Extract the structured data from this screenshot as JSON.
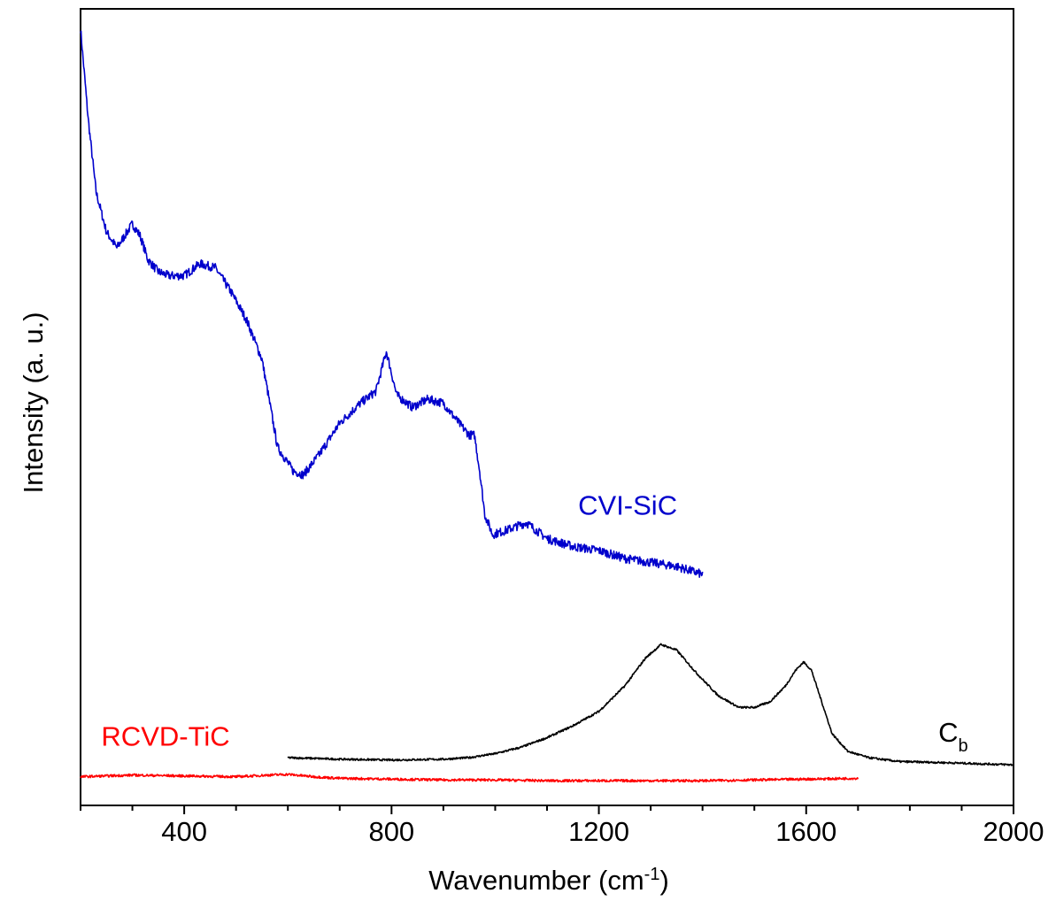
{
  "chart_data": {
    "type": "line",
    "xlabel": "Wavenumber (cm",
    "xlabel_sup": "-1",
    "xlabel_suffix": ")",
    "ylabel": "Intensity (a. u.)",
    "xlim": [
      200,
      2000
    ],
    "ylim": [
      0,
      100
    ],
    "xticks": [
      400,
      800,
      1200,
      1600,
      2000
    ],
    "xtick_labels": [
      "400",
      "800",
      "1200",
      "1600",
      "2000"
    ],
    "minor_xtick_step": 100,
    "grid": false,
    "legend": "none",
    "series": [
      {
        "name": "CVI-SiC",
        "label_main": "CVI-SiC",
        "label_sub": "",
        "color": "#0000cc",
        "label_at": {
          "x": 1160,
          "y": 36.5
        },
        "x": [
          200,
          215,
          230,
          250,
          270,
          285,
          300,
          315,
          330,
          350,
          370,
          400,
          430,
          460,
          490,
          520,
          550,
          580,
          610,
          630,
          660,
          700,
          740,
          770,
          790,
          810,
          840,
          870,
          900,
          930,
          950,
          960,
          970,
          980,
          995,
          1020,
          1060,
          1100,
          1150,
          1200,
          1250,
          1300,
          1350,
          1400
        ],
        "y": [
          97.5,
          86,
          77,
          72,
          70,
          71.5,
          73,
          71.5,
          68.5,
          67,
          66.5,
          66.5,
          68,
          67.5,
          64.5,
          61,
          56,
          45,
          42,
          41.5,
          44,
          48,
          50.5,
          52,
          57,
          51.5,
          50,
          51,
          50.5,
          48,
          46.5,
          46.5,
          42,
          36.5,
          34,
          34.5,
          35.5,
          33.5,
          32.5,
          32,
          31,
          30.5,
          30,
          29
        ]
      },
      {
        "name": "C_b",
        "label_main": "C",
        "label_sub": "b",
        "color": "#000000",
        "label_at": {
          "x": 1855,
          "y": 8
        },
        "x": [
          600,
          700,
          800,
          900,
          950,
          1000,
          1050,
          1100,
          1150,
          1200,
          1250,
          1290,
          1320,
          1350,
          1390,
          1430,
          1470,
          1500,
          1530,
          1560,
          1580,
          1595,
          1610,
          1630,
          1650,
          1680,
          1720,
          1780,
          1850,
          1950,
          2000
        ],
        "y": [
          6.0,
          5.8,
          5.7,
          5.8,
          6.0,
          6.5,
          7.3,
          8.5,
          10.0,
          11.8,
          15.0,
          18.5,
          20.2,
          19.5,
          16.5,
          13.8,
          12.3,
          12.3,
          13.0,
          15.0,
          17.0,
          18.0,
          17.0,
          13.0,
          9.0,
          6.8,
          6.0,
          5.5,
          5.4,
          5.2,
          5.1
        ]
      },
      {
        "name": "RCVD-TiC",
        "label_main": "RCVD-TiC",
        "label_sub": "",
        "color": "#ff0000",
        "label_at": {
          "x": 240,
          "y": 7.5
        },
        "x": [
          200,
          300,
          400,
          500,
          560,
          600,
          650,
          700,
          800,
          900,
          1000,
          1100,
          1200,
          1300,
          1400,
          1500,
          1600,
          1700
        ],
        "y": [
          3.6,
          3.8,
          3.7,
          3.6,
          3.8,
          3.9,
          3.6,
          3.4,
          3.3,
          3.2,
          3.2,
          3.1,
          3.1,
          3.1,
          3.1,
          3.2,
          3.3,
          3.4
        ]
      }
    ]
  }
}
